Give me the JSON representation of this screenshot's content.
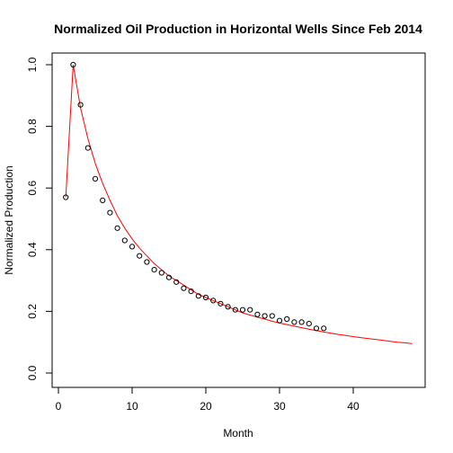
{
  "chart_data": {
    "type": "scatter",
    "title": "Normalized Oil Production in Horizontal Wells Since Feb 2014",
    "xlabel": "Month",
    "ylabel": "Normalized Production",
    "xlim": [
      0,
      48
    ],
    "ylim": [
      0,
      1.0
    ],
    "x_ticks": [
      0,
      10,
      20,
      30,
      40
    ],
    "y_ticks": [
      0.0,
      0.2,
      0.4,
      0.6,
      0.8,
      1.0
    ],
    "x_tick_labels": [
      "0",
      "10",
      "20",
      "30",
      "40"
    ],
    "y_tick_labels": [
      "0.0",
      "0.2",
      "0.4",
      "0.6",
      "0.8",
      "1.0"
    ],
    "grid": false,
    "series": [
      {
        "kind": "points",
        "color": "#000000",
        "x": [
          1,
          2,
          3,
          4,
          5,
          6,
          7,
          8,
          9,
          10,
          11,
          12,
          13,
          14,
          15,
          16,
          17,
          18,
          19,
          20,
          21,
          22,
          23,
          24,
          25,
          26,
          27,
          28,
          29,
          30,
          31,
          32,
          33,
          34,
          35,
          36
        ],
        "y": [
          0.57,
          1.0,
          0.87,
          0.73,
          0.63,
          0.56,
          0.52,
          0.47,
          0.43,
          0.41,
          0.38,
          0.36,
          0.335,
          0.325,
          0.31,
          0.295,
          0.275,
          0.265,
          0.25,
          0.245,
          0.235,
          0.225,
          0.215,
          0.205,
          0.205,
          0.205,
          0.19,
          0.185,
          0.185,
          0.17,
          0.175,
          0.165,
          0.165,
          0.16,
          0.145,
          0.145
        ]
      },
      {
        "kind": "line",
        "color": "#ff0000",
        "x": [
          1,
          2,
          3,
          4,
          5,
          6,
          7,
          8,
          9,
          10,
          11,
          12,
          13,
          14,
          15,
          16,
          17,
          18,
          19,
          20,
          21,
          22,
          23,
          24,
          25,
          26,
          27,
          28,
          29,
          30,
          31,
          32,
          33,
          34,
          35,
          36,
          37,
          38,
          39,
          40,
          41,
          42,
          43,
          44,
          45,
          46,
          47,
          48
        ],
        "y": [
          0.57,
          1.0,
          0.86,
          0.76,
          0.68,
          0.615,
          0.56,
          0.51,
          0.47,
          0.435,
          0.405,
          0.38,
          0.355,
          0.335,
          0.315,
          0.3,
          0.285,
          0.27,
          0.255,
          0.245,
          0.235,
          0.225,
          0.215,
          0.205,
          0.195,
          0.188,
          0.181,
          0.175,
          0.168,
          0.162,
          0.157,
          0.152,
          0.147,
          0.142,
          0.138,
          0.133,
          0.129,
          0.125,
          0.122,
          0.118,
          0.115,
          0.112,
          0.109,
          0.106,
          0.103,
          0.1,
          0.098,
          0.095
        ]
      }
    ]
  }
}
